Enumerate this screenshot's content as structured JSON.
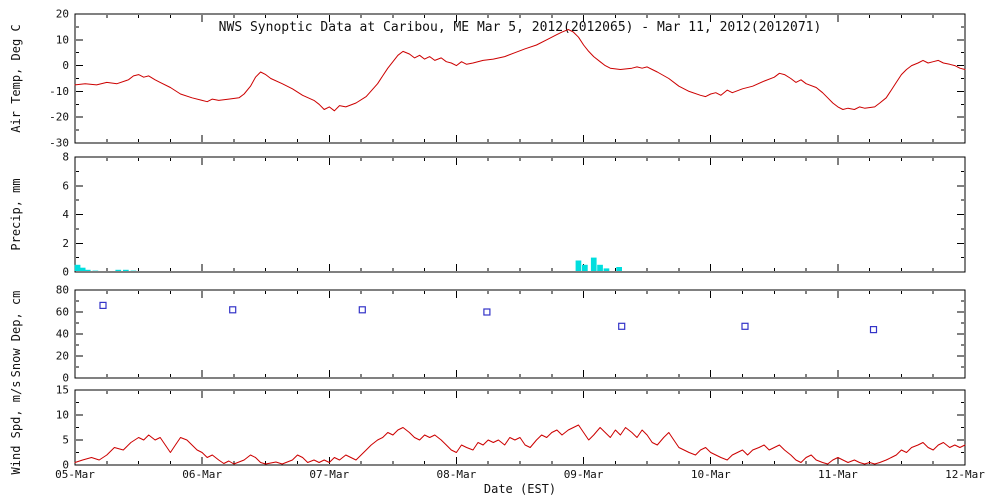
{
  "title": "NWS Synoptic Data at Caribou, ME   Mar  5, 2012(2012065) - Mar 11, 2012(2012071)",
  "x_axis": {
    "label": "Date (EST)",
    "tick_labels": [
      "05-Mar",
      "06-Mar",
      "07-Mar",
      "08-Mar",
      "09-Mar",
      "10-Mar",
      "11-Mar",
      "12-Mar"
    ],
    "range_days": [
      0,
      7
    ]
  },
  "colors": {
    "line": "#cc0000",
    "precip": "#00dede",
    "snow": "#3434c8",
    "axis": "#000000"
  },
  "chart_data": [
    {
      "type": "line",
      "name": "air-temp",
      "ylabel": "Air Temp, Deg C",
      "ylim": [
        -30,
        20
      ],
      "yticks": [
        -30,
        -20,
        -10,
        0,
        10,
        20
      ],
      "color": "#cc0000",
      "points": [
        [
          0.0,
          -7.5
        ],
        [
          0.08,
          -7
        ],
        [
          0.17,
          -7.5
        ],
        [
          0.25,
          -6.5
        ],
        [
          0.33,
          -7
        ],
        [
          0.42,
          -5.5
        ],
        [
          0.46,
          -4
        ],
        [
          0.5,
          -3.5
        ],
        [
          0.54,
          -4.5
        ],
        [
          0.58,
          -4
        ],
        [
          0.63,
          -5.5
        ],
        [
          0.67,
          -6.5
        ],
        [
          0.75,
          -8.5
        ],
        [
          0.83,
          -11
        ],
        [
          0.92,
          -12.5
        ],
        [
          1.0,
          -13.5
        ],
        [
          1.04,
          -14
        ],
        [
          1.08,
          -13
        ],
        [
          1.13,
          -13.5
        ],
        [
          1.21,
          -13
        ],
        [
          1.29,
          -12.5
        ],
        [
          1.33,
          -11
        ],
        [
          1.38,
          -8
        ],
        [
          1.42,
          -4.5
        ],
        [
          1.46,
          -2.5
        ],
        [
          1.5,
          -3.5
        ],
        [
          1.54,
          -5
        ],
        [
          1.63,
          -7
        ],
        [
          1.71,
          -9
        ],
        [
          1.79,
          -11.5
        ],
        [
          1.88,
          -13.5
        ],
        [
          1.92,
          -15
        ],
        [
          1.96,
          -17
        ],
        [
          2.0,
          -16
        ],
        [
          2.04,
          -17.5
        ],
        [
          2.08,
          -15.5
        ],
        [
          2.13,
          -16
        ],
        [
          2.21,
          -14.5
        ],
        [
          2.29,
          -12
        ],
        [
          2.38,
          -7
        ],
        [
          2.42,
          -4
        ],
        [
          2.46,
          -1
        ],
        [
          2.5,
          1.5
        ],
        [
          2.54,
          4
        ],
        [
          2.58,
          5.5
        ],
        [
          2.63,
          4.5
        ],
        [
          2.67,
          3
        ],
        [
          2.71,
          4
        ],
        [
          2.75,
          2.5
        ],
        [
          2.79,
          3.5
        ],
        [
          2.83,
          2
        ],
        [
          2.88,
          3
        ],
        [
          2.92,
          1.5
        ],
        [
          2.96,
          1
        ],
        [
          3.0,
          0
        ],
        [
          3.04,
          1.5
        ],
        [
          3.08,
          0.5
        ],
        [
          3.13,
          1
        ],
        [
          3.21,
          2
        ],
        [
          3.29,
          2.5
        ],
        [
          3.38,
          3.5
        ],
        [
          3.46,
          5
        ],
        [
          3.54,
          6.5
        ],
        [
          3.63,
          8
        ],
        [
          3.71,
          10
        ],
        [
          3.79,
          12
        ],
        [
          3.83,
          13
        ],
        [
          3.88,
          14
        ],
        [
          3.92,
          13
        ],
        [
          3.96,
          11
        ],
        [
          4.0,
          8
        ],
        [
          4.04,
          5.5
        ],
        [
          4.08,
          3.5
        ],
        [
          4.13,
          1.5
        ],
        [
          4.17,
          0
        ],
        [
          4.21,
          -1
        ],
        [
          4.29,
          -1.5
        ],
        [
          4.38,
          -1
        ],
        [
          4.42,
          -0.5
        ],
        [
          4.46,
          -1
        ],
        [
          4.5,
          -0.5
        ],
        [
          4.54,
          -1.5
        ],
        [
          4.58,
          -2.5
        ],
        [
          4.67,
          -5
        ],
        [
          4.75,
          -8
        ],
        [
          4.83,
          -10
        ],
        [
          4.92,
          -11.5
        ],
        [
          4.96,
          -12
        ],
        [
          5.0,
          -11
        ],
        [
          5.04,
          -10.5
        ],
        [
          5.08,
          -11.5
        ],
        [
          5.13,
          -9.5
        ],
        [
          5.17,
          -10.5
        ],
        [
          5.25,
          -9
        ],
        [
          5.33,
          -8
        ],
        [
          5.42,
          -6
        ],
        [
          5.5,
          -4.5
        ],
        [
          5.54,
          -3
        ],
        [
          5.58,
          -3.5
        ],
        [
          5.63,
          -5
        ],
        [
          5.67,
          -6.5
        ],
        [
          5.71,
          -5.5
        ],
        [
          5.75,
          -7
        ],
        [
          5.83,
          -8.5
        ],
        [
          5.88,
          -10.5
        ],
        [
          5.92,
          -12.5
        ],
        [
          5.96,
          -14.5
        ],
        [
          6.0,
          -16
        ],
        [
          6.04,
          -17
        ],
        [
          6.08,
          -16.5
        ],
        [
          6.13,
          -17
        ],
        [
          6.17,
          -16
        ],
        [
          6.21,
          -16.5
        ],
        [
          6.29,
          -16
        ],
        [
          6.33,
          -14.5
        ],
        [
          6.38,
          -12.5
        ],
        [
          6.42,
          -9.5
        ],
        [
          6.46,
          -6.5
        ],
        [
          6.5,
          -3.5
        ],
        [
          6.54,
          -1.5
        ],
        [
          6.58,
          0
        ],
        [
          6.63,
          1
        ],
        [
          6.67,
          2
        ],
        [
          6.71,
          1
        ],
        [
          6.75,
          1.5
        ],
        [
          6.79,
          2
        ],
        [
          6.83,
          1
        ],
        [
          6.88,
          0.5
        ],
        [
          6.92,
          0
        ],
        [
          6.96,
          -1
        ],
        [
          7.0,
          -1.5
        ]
      ]
    },
    {
      "type": "bar",
      "name": "precip",
      "ylabel": "Precip, mm",
      "ylim": [
        0,
        8
      ],
      "yticks": [
        0,
        2,
        4,
        6,
        8
      ],
      "color": "#00dede",
      "bar_width_days": 0.045,
      "points": [
        [
          0.02,
          0.5
        ],
        [
          0.06,
          0.3
        ],
        [
          0.1,
          0.15
        ],
        [
          0.16,
          0.1
        ],
        [
          0.34,
          0.15
        ],
        [
          0.4,
          0.15
        ],
        [
          0.46,
          0.1
        ],
        [
          3.96,
          0.8
        ],
        [
          4.01,
          0.5
        ],
        [
          4.08,
          1.0
        ],
        [
          4.13,
          0.5
        ],
        [
          4.18,
          0.25
        ],
        [
          4.28,
          0.35
        ]
      ]
    },
    {
      "type": "scatter",
      "name": "snow-depth",
      "ylabel": "Snow Dep, cm",
      "ylim": [
        0,
        80
      ],
      "yticks": [
        0,
        20,
        40,
        60,
        80
      ],
      "color": "#3434c8",
      "marker": "open-square",
      "points": [
        [
          0.22,
          66
        ],
        [
          1.24,
          62
        ],
        [
          2.26,
          62
        ],
        [
          3.24,
          60
        ],
        [
          4.3,
          47
        ],
        [
          5.27,
          47
        ],
        [
          6.28,
          44
        ]
      ]
    },
    {
      "type": "line",
      "name": "wind-speed",
      "ylabel": "Wind Spd, m/s",
      "ylim": [
        0,
        15
      ],
      "yticks": [
        0,
        5,
        10,
        15
      ],
      "color": "#cc0000",
      "points": [
        [
          0.0,
          0.5
        ],
        [
          0.06,
          1
        ],
        [
          0.13,
          1.5
        ],
        [
          0.19,
          1
        ],
        [
          0.25,
          2
        ],
        [
          0.31,
          3.5
        ],
        [
          0.38,
          3
        ],
        [
          0.44,
          4.5
        ],
        [
          0.5,
          5.5
        ],
        [
          0.54,
          5
        ],
        [
          0.58,
          6
        ],
        [
          0.63,
          5
        ],
        [
          0.67,
          5.5
        ],
        [
          0.71,
          4
        ],
        [
          0.75,
          2.5
        ],
        [
          0.79,
          4
        ],
        [
          0.83,
          5.5
        ],
        [
          0.88,
          5
        ],
        [
          0.92,
          4
        ],
        [
          0.96,
          3
        ],
        [
          1.0,
          2.5
        ],
        [
          1.04,
          1.5
        ],
        [
          1.08,
          2
        ],
        [
          1.13,
          1
        ],
        [
          1.17,
          0.3
        ],
        [
          1.21,
          0.8
        ],
        [
          1.25,
          0.2
        ],
        [
          1.33,
          1
        ],
        [
          1.38,
          2
        ],
        [
          1.42,
          1.5
        ],
        [
          1.46,
          0.5
        ],
        [
          1.5,
          0.2
        ],
        [
          1.58,
          0.6
        ],
        [
          1.63,
          0.2
        ],
        [
          1.71,
          1
        ],
        [
          1.75,
          2
        ],
        [
          1.79,
          1.5
        ],
        [
          1.83,
          0.5
        ],
        [
          1.88,
          1
        ],
        [
          1.92,
          0.5
        ],
        [
          1.96,
          1
        ],
        [
          2.0,
          0.5
        ],
        [
          2.04,
          1.5
        ],
        [
          2.08,
          1
        ],
        [
          2.13,
          2
        ],
        [
          2.17,
          1.5
        ],
        [
          2.21,
          1
        ],
        [
          2.25,
          2
        ],
        [
          2.29,
          3
        ],
        [
          2.33,
          4
        ],
        [
          2.38,
          5
        ],
        [
          2.42,
          5.5
        ],
        [
          2.46,
          6.5
        ],
        [
          2.5,
          6
        ],
        [
          2.54,
          7
        ],
        [
          2.58,
          7.5
        ],
        [
          2.63,
          6.5
        ],
        [
          2.67,
          5.5
        ],
        [
          2.71,
          5
        ],
        [
          2.75,
          6
        ],
        [
          2.79,
          5.5
        ],
        [
          2.83,
          6
        ],
        [
          2.88,
          5
        ],
        [
          2.92,
          4
        ],
        [
          2.96,
          3
        ],
        [
          3.0,
          2.5
        ],
        [
          3.04,
          4
        ],
        [
          3.08,
          3.5
        ],
        [
          3.13,
          3
        ],
        [
          3.17,
          4.5
        ],
        [
          3.21,
          4
        ],
        [
          3.25,
          5
        ],
        [
          3.29,
          4.5
        ],
        [
          3.33,
          5
        ],
        [
          3.38,
          4
        ],
        [
          3.42,
          5.5
        ],
        [
          3.46,
          5
        ],
        [
          3.5,
          5.5
        ],
        [
          3.54,
          4
        ],
        [
          3.58,
          3.5
        ],
        [
          3.63,
          5
        ],
        [
          3.67,
          6
        ],
        [
          3.71,
          5.5
        ],
        [
          3.75,
          6.5
        ],
        [
          3.79,
          7
        ],
        [
          3.83,
          6
        ],
        [
          3.88,
          7
        ],
        [
          3.92,
          7.5
        ],
        [
          3.96,
          8
        ],
        [
          4.0,
          6.5
        ],
        [
          4.04,
          5
        ],
        [
          4.08,
          6
        ],
        [
          4.13,
          7.5
        ],
        [
          4.17,
          6.5
        ],
        [
          4.21,
          5.5
        ],
        [
          4.25,
          7
        ],
        [
          4.29,
          6
        ],
        [
          4.33,
          7.5
        ],
        [
          4.38,
          6.5
        ],
        [
          4.42,
          5.5
        ],
        [
          4.46,
          7
        ],
        [
          4.5,
          6
        ],
        [
          4.54,
          4.5
        ],
        [
          4.58,
          4
        ],
        [
          4.63,
          5.5
        ],
        [
          4.67,
          6.5
        ],
        [
          4.71,
          5
        ],
        [
          4.75,
          3.5
        ],
        [
          4.79,
          3
        ],
        [
          4.83,
          2.5
        ],
        [
          4.88,
          2
        ],
        [
          4.92,
          3
        ],
        [
          4.96,
          3.5
        ],
        [
          5.0,
          2.5
        ],
        [
          5.04,
          2
        ],
        [
          5.08,
          1.5
        ],
        [
          5.13,
          1
        ],
        [
          5.17,
          2
        ],
        [
          5.21,
          2.5
        ],
        [
          5.25,
          3
        ],
        [
          5.29,
          2
        ],
        [
          5.33,
          3
        ],
        [
          5.38,
          3.5
        ],
        [
          5.42,
          4
        ],
        [
          5.46,
          3
        ],
        [
          5.5,
          3.5
        ],
        [
          5.54,
          4
        ],
        [
          5.58,
          3
        ],
        [
          5.63,
          2
        ],
        [
          5.67,
          1
        ],
        [
          5.71,
          0.5
        ],
        [
          5.75,
          1.5
        ],
        [
          5.79,
          2
        ],
        [
          5.83,
          1
        ],
        [
          5.88,
          0.5
        ],
        [
          5.92,
          0.2
        ],
        [
          5.96,
          1
        ],
        [
          6.0,
          1.5
        ],
        [
          6.04,
          1
        ],
        [
          6.08,
          0.5
        ],
        [
          6.13,
          1
        ],
        [
          6.17,
          0.5
        ],
        [
          6.21,
          0.2
        ],
        [
          6.25,
          0.5
        ],
        [
          6.29,
          0.2
        ],
        [
          6.33,
          0.5
        ],
        [
          6.38,
          1
        ],
        [
          6.42,
          1.5
        ],
        [
          6.46,
          2
        ],
        [
          6.5,
          3
        ],
        [
          6.54,
          2.5
        ],
        [
          6.58,
          3.5
        ],
        [
          6.63,
          4
        ],
        [
          6.67,
          4.5
        ],
        [
          6.71,
          3.5
        ],
        [
          6.75,
          3
        ],
        [
          6.79,
          4
        ],
        [
          6.83,
          4.5
        ],
        [
          6.88,
          3.5
        ],
        [
          6.92,
          4
        ],
        [
          6.96,
          3.5
        ],
        [
          7.0,
          4
        ]
      ]
    }
  ]
}
